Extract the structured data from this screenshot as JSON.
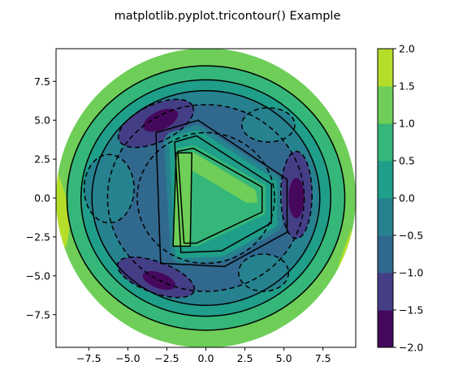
{
  "chart_data": {
    "type": "tricontour",
    "title": "matplotlib.pyplot.tricontour() Example",
    "xlim": [
      -9.6,
      9.6
    ],
    "ylim": [
      -9.6,
      9.6
    ],
    "x_ticks": [
      -7.5,
      -5.0,
      -2.5,
      0.0,
      2.5,
      5.0,
      7.5
    ],
    "x_tick_labels": [
      "−7.5",
      "−5.0",
      "−2.5",
      "0.0",
      "2.5",
      "5.0",
      "7.5"
    ],
    "y_ticks": [
      7.5,
      5.0,
      2.5,
      0.0,
      -2.5,
      -5.0,
      -7.5
    ],
    "y_tick_labels": [
      "7.5",
      "5.0",
      "2.5",
      "0.0",
      "−2.5",
      "−5.0",
      "−7.5"
    ],
    "domain_radius": 9.6,
    "grid": false,
    "colorbar": {
      "levels": [
        -2.0,
        -1.5,
        -1.0,
        -0.5,
        0.0,
        0.5,
        1.0,
        1.5,
        2.0
      ],
      "tick_labels": [
        "2.0",
        "1.5",
        "1.0",
        "0.5",
        "0.0",
        "−0.5",
        "−1.0",
        "−1.5",
        "−2.0"
      ],
      "colors": [
        "#46085c",
        "#433e85",
        "#31688e",
        "#26828e",
        "#1f9e89",
        "#35b779",
        "#6ece58",
        "#b5de2b"
      ]
    }
  }
}
